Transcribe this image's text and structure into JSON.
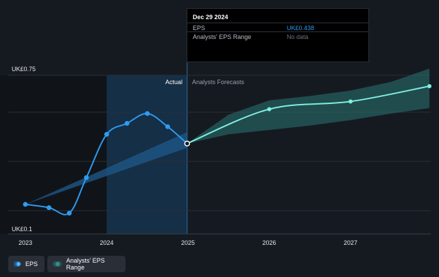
{
  "tooltip": {
    "date": "Dec 29 2024",
    "rows": [
      {
        "label": "EPS",
        "value": "UK£0.438"
      },
      {
        "label": "Analysts' EPS Range",
        "value": "No data"
      }
    ]
  },
  "regions": {
    "actual_label": "Actual",
    "forecast_label": "Analysts Forecasts"
  },
  "legend": {
    "eps_label": "EPS",
    "range_label": "Analysts' EPS Range"
  },
  "colors": {
    "background": "#151a21",
    "eps_line": "#2f9bf0",
    "forecast_line": "#7ef0e4",
    "range_band_past": "#1f5a8c",
    "range_band_forecast": "#2a6e6a"
  },
  "chart_data": {
    "type": "line",
    "y_tick_labels": [
      "UK£0.75",
      "UK£0.1"
    ],
    "ylim": [
      0.1,
      0.75
    ],
    "xlim": [
      2023.0,
      2027.97
    ],
    "x_tick_labels": [
      "2023",
      "2024",
      "2025",
      "2026",
      "2027"
    ],
    "x_ticks": [
      2023,
      2024,
      2025,
      2026,
      2027
    ],
    "today": 2024.99,
    "series": [
      {
        "name": "EPS",
        "x": [
          2023.0,
          2023.29,
          2023.54,
          2023.75,
          2024.0,
          2024.25,
          2024.5,
          2024.75,
          2024.99
        ],
        "y": [
          0.16,
          0.145,
          0.12,
          0.282,
          0.48,
          0.53,
          0.575,
          0.515,
          0.438
        ]
      },
      {
        "name": "EPS Forecast",
        "x": [
          2024.99,
          2026.0,
          2027.0,
          2027.97
        ],
        "y": [
          0.438,
          0.595,
          0.63,
          0.7
        ]
      }
    ],
    "range_band_past": {
      "x": [
        2023.0,
        2024.99
      ],
      "low": [
        0.16,
        0.418
      ],
      "high": [
        0.16,
        0.49
      ]
    },
    "range_band_forecast": {
      "x": [
        2024.99,
        2025.5,
        2026.0,
        2026.5,
        2027.0,
        2027.5,
        2027.97
      ],
      "low": [
        0.438,
        0.48,
        0.5,
        0.52,
        0.545,
        0.575,
        0.6
      ],
      "high": [
        0.438,
        0.57,
        0.635,
        0.655,
        0.68,
        0.72,
        0.78
      ]
    },
    "grid": true,
    "legend_position": "bottom-left"
  }
}
